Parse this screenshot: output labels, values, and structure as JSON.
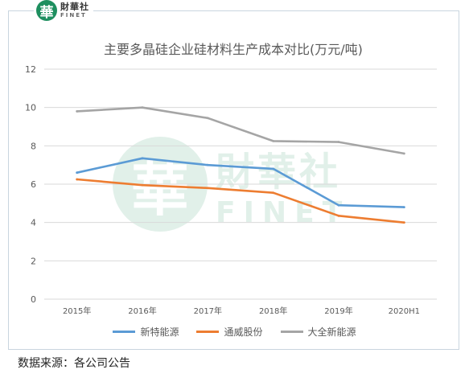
{
  "brand": {
    "logo_char": "華",
    "name": "財華社",
    "sub": "FINET"
  },
  "source": "数据来源：各公司公告",
  "colors": {
    "grid": "#d9d9d9",
    "axis_text": "#595959"
  },
  "chart_data": {
    "type": "line",
    "title": "主要多晶硅企业硅材料生产成本对比(万元/吨)",
    "categories": [
      "2015年",
      "2016年",
      "2017年",
      "2018年",
      "2019年",
      "2020H1"
    ],
    "ylim": [
      0,
      12
    ],
    "yticks": [
      0,
      2,
      4,
      6,
      8,
      10,
      12
    ],
    "grid": true,
    "legend_position": "bottom",
    "series": [
      {
        "name": "新特能源",
        "color": "#5b9bd5",
        "values": [
          6.6,
          7.35,
          7.0,
          6.8,
          4.9,
          4.8
        ]
      },
      {
        "name": "通威股份",
        "color": "#ed7d31",
        "values": [
          6.25,
          5.95,
          5.8,
          5.55,
          4.35,
          4.0
        ]
      },
      {
        "name": "大全新能源",
        "color": "#a5a5a5",
        "values": [
          9.8,
          10.0,
          9.45,
          8.25,
          8.2,
          7.6
        ]
      }
    ]
  }
}
